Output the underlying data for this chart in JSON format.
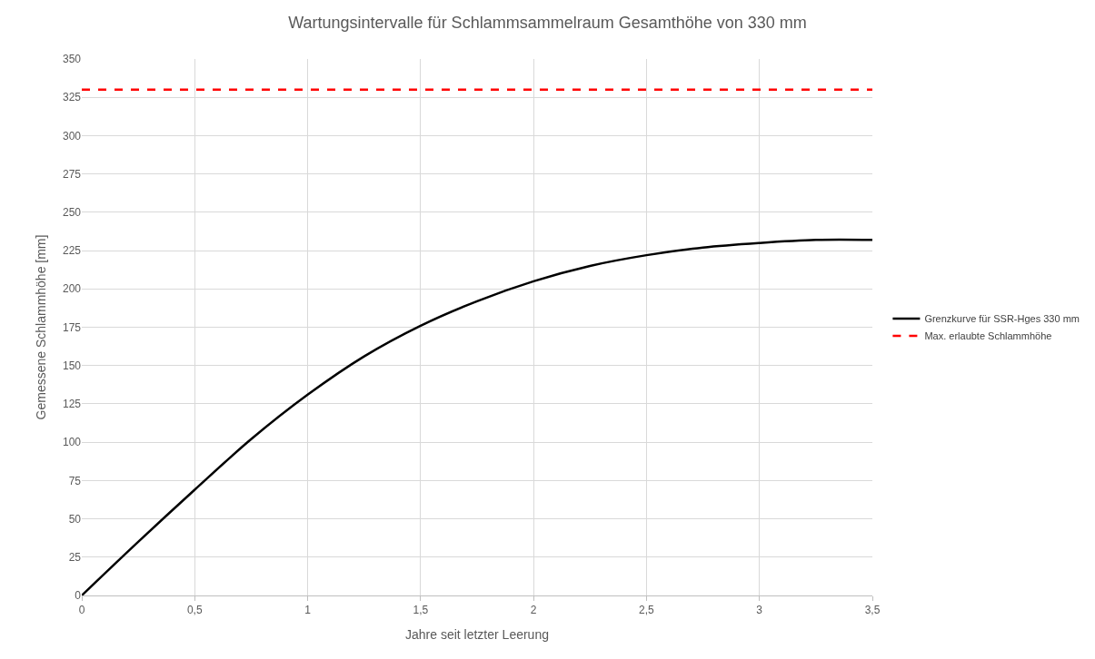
{
  "chart_data": {
    "type": "line",
    "title": "Wartungsintervalle für Schlammsammelraum Gesamthöhe von 330 mm",
    "xlabel": "Jahre seit letzter Leerung",
    "ylabel": "Gemessene Schlammhöhe [mm]",
    "x": [
      0,
      0.25,
      0.5,
      0.75,
      1,
      1.25,
      1.5,
      1.75,
      2,
      2.25,
      2.5,
      2.75,
      3,
      3.25,
      3.5
    ],
    "series": [
      {
        "name": "Grenzkurve für SSR-Hges 330 mm",
        "color": "#000000",
        "values": [
          0,
          35,
          69,
          102,
          131,
          156,
          176,
          192,
          205,
          215,
          222,
          227,
          230,
          232,
          232
        ]
      }
    ],
    "ref_lines": [
      {
        "axis": "y",
        "value": 330,
        "label": "Max. erlaubte Schlammhöhe",
        "color": "#ff0000",
        "line_style": "dashed"
      }
    ],
    "xlim": [
      0,
      3.5
    ],
    "xticks": [
      0,
      {
        "value": 0.5,
        "label": "0,5"
      },
      1,
      {
        "value": 1.5,
        "label": "1,5"
      },
      2,
      {
        "value": 2.5,
        "label": "2,5"
      },
      3,
      {
        "value": 3.5,
        "label": "3,5"
      }
    ],
    "ylim": [
      0,
      350
    ],
    "yticks": [
      0,
      25,
      50,
      75,
      100,
      125,
      150,
      175,
      200,
      225,
      250,
      275,
      300,
      325,
      350
    ],
    "grid": true,
    "legend": "right",
    "marker": "none",
    "line_style": "solid"
  }
}
